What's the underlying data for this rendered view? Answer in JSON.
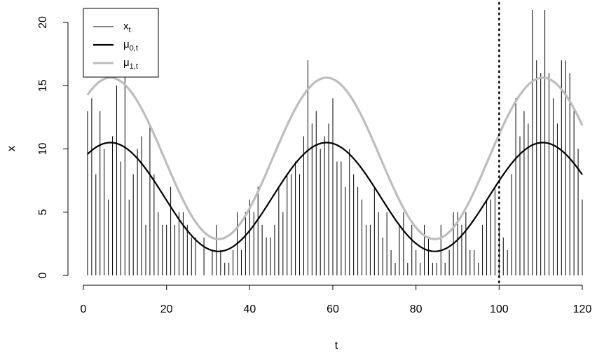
{
  "chart_data": {
    "type": "line",
    "xlabel": "t",
    "ylabel": "x",
    "xlim": [
      -3,
      124
    ],
    "ylim": [
      -0.8,
      21.5
    ],
    "x_ticks": [
      0,
      20,
      40,
      60,
      80,
      100,
      120
    ],
    "y_ticks": [
      0,
      5,
      10,
      15,
      20
    ],
    "grid": false,
    "legend_position": "top-left",
    "vline": {
      "x": 100,
      "style": "dotted",
      "color": "#000000"
    },
    "legend": {
      "x": {
        "base": "x",
        "sub": "t"
      },
      "mu0": {
        "base": "μ",
        "sub": "0,t"
      },
      "mu1": {
        "base": "μ",
        "sub": "1,t"
      }
    },
    "series": [
      {
        "name": "x_t",
        "style": "histogram-spikes",
        "color": "#000000",
        "x": [
          1,
          2,
          3,
          4,
          5,
          6,
          7,
          8,
          9,
          10,
          11,
          12,
          13,
          14,
          15,
          16,
          17,
          18,
          19,
          20,
          21,
          22,
          23,
          24,
          25,
          26,
          27,
          28,
          29,
          30,
          31,
          32,
          33,
          34,
          35,
          36,
          37,
          38,
          39,
          40,
          41,
          42,
          43,
          44,
          45,
          46,
          47,
          48,
          49,
          50,
          51,
          52,
          53,
          54,
          55,
          56,
          57,
          58,
          59,
          60,
          61,
          62,
          63,
          64,
          65,
          66,
          67,
          68,
          69,
          70,
          71,
          72,
          73,
          74,
          75,
          76,
          77,
          78,
          79,
          80,
          81,
          82,
          83,
          84,
          85,
          86,
          87,
          88,
          89,
          90,
          91,
          92,
          93,
          94,
          95,
          96,
          97,
          98,
          99,
          100,
          101,
          102,
          103,
          104,
          105,
          106,
          107,
          108,
          109,
          110,
          111,
          112,
          113,
          114,
          115,
          116,
          117,
          118,
          119,
          120
        ],
        "values": [
          13,
          14,
          8,
          13,
          10,
          6,
          11,
          15,
          9,
          16,
          6,
          8,
          10,
          11,
          4,
          12,
          8,
          5,
          4,
          4,
          7,
          4,
          5,
          5,
          4,
          3,
          3,
          0,
          3,
          0,
          2,
          4,
          2,
          1,
          1,
          2,
          5,
          2,
          5,
          6,
          5,
          7,
          4,
          3,
          3,
          4,
          7,
          5,
          8,
          8,
          9,
          8,
          11,
          17,
          12,
          13,
          10,
          11,
          12,
          14,
          9,
          9,
          7,
          10,
          8,
          7,
          6,
          4,
          4,
          7,
          5,
          3,
          5,
          2,
          1,
          4,
          5,
          1,
          4,
          2,
          1,
          4,
          3,
          1,
          1,
          4,
          1,
          2,
          5,
          5,
          4,
          5,
          2,
          2,
          1,
          4,
          6,
          6,
          7,
          4,
          3,
          2,
          8,
          14,
          11,
          13,
          12,
          21,
          17,
          16,
          21,
          16,
          14,
          12,
          17,
          17,
          16,
          13,
          10,
          6
        ]
      },
      {
        "name": "mu_0,t",
        "style": "line",
        "color": "#000000",
        "function": {
          "type": "sinusoid",
          "mean": 6.2,
          "amplitude": 4.3,
          "period": 52,
          "peak_t": 6.5,
          "t_range": [
            1,
            120
          ]
        }
      },
      {
        "name": "mu_1,t",
        "style": "line",
        "color": "#bdbdbd",
        "function": {
          "type": "sinusoid",
          "mean": 9.25,
          "amplitude": 6.38,
          "period": 52,
          "peak_t": 6.5,
          "t_range": [
            1,
            120
          ]
        }
      }
    ]
  }
}
